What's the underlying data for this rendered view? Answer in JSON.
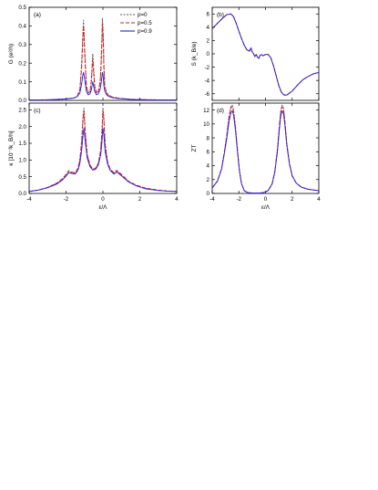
{
  "colors": {
    "p0": "#555555",
    "p05": "#e8141b",
    "p09": "#2a1fd8",
    "axis": "#000000"
  },
  "chart_data": [
    {
      "id": "a",
      "type": "line",
      "panel_label": "(a)",
      "ylabel": "G (e²/h)",
      "xlabel": "",
      "xlim": [
        -4,
        4
      ],
      "ylim": [
        0,
        0.5
      ],
      "xticks": [
        -4,
        -2,
        0,
        2,
        4
      ],
      "yticks": [
        0.0,
        0.1,
        0.2,
        0.3,
        0.4,
        0.5
      ],
      "legend": {
        "placement": "top-right",
        "entries": [
          "p=0",
          "p=0.5",
          "p=0.9"
        ]
      },
      "series": [
        {
          "name": "p=0",
          "color_key": "p0",
          "dash": "2,1.5",
          "x": [
            -4,
            -3,
            -2.5,
            -2,
            -1.6,
            -1.4,
            -1.25,
            -1.15,
            -1.1,
            -1.05,
            -1,
            -0.9,
            -0.8,
            -0.7,
            -0.62,
            -0.58,
            -0.55,
            -0.52,
            -0.45,
            -0.35,
            -0.25,
            -0.15,
            -0.1,
            -0.05,
            -0.03,
            0,
            0.03,
            0.05,
            0.1,
            0.2,
            0.3,
            0.5,
            0.8,
            1.5,
            2.5,
            4
          ],
          "y": [
            0.002,
            0.003,
            0.005,
            0.008,
            0.012,
            0.02,
            0.06,
            0.2,
            0.33,
            0.43,
            0.3,
            0.08,
            0.04,
            0.05,
            0.12,
            0.2,
            0.25,
            0.2,
            0.08,
            0.04,
            0.05,
            0.1,
            0.2,
            0.35,
            0.44,
            0.4,
            0.3,
            0.2,
            0.08,
            0.04,
            0.028,
            0.018,
            0.012,
            0.006,
            0.003,
            0.002
          ]
        },
        {
          "name": "p=0.5",
          "color_key": "p05",
          "dash": "4,2",
          "x": [
            -4,
            -3,
            -2.5,
            -2,
            -1.6,
            -1.4,
            -1.25,
            -1.15,
            -1.1,
            -1.05,
            -1,
            -0.9,
            -0.8,
            -0.7,
            -0.62,
            -0.58,
            -0.55,
            -0.52,
            -0.45,
            -0.35,
            -0.25,
            -0.15,
            -0.1,
            -0.05,
            -0.03,
            0,
            0.03,
            0.05,
            0.1,
            0.2,
            0.3,
            0.5,
            0.8,
            1.5,
            2.5,
            4
          ],
          "y": [
            0.002,
            0.003,
            0.005,
            0.008,
            0.012,
            0.02,
            0.055,
            0.18,
            0.3,
            0.4,
            0.28,
            0.075,
            0.04,
            0.048,
            0.11,
            0.18,
            0.22,
            0.18,
            0.075,
            0.04,
            0.048,
            0.095,
            0.18,
            0.32,
            0.41,
            0.37,
            0.28,
            0.18,
            0.075,
            0.04,
            0.027,
            0.018,
            0.012,
            0.006,
            0.003,
            0.002
          ]
        },
        {
          "name": "p=0.9",
          "color_key": "p09",
          "dash": "",
          "x": [
            -4,
            -3,
            -2.5,
            -2,
            -1.6,
            -1.4,
            -1.25,
            -1.15,
            -1.1,
            -1.05,
            -1,
            -0.9,
            -0.8,
            -0.7,
            -0.62,
            -0.58,
            -0.55,
            -0.52,
            -0.45,
            -0.35,
            -0.25,
            -0.15,
            -0.1,
            -0.05,
            -0.03,
            0,
            0.03,
            0.05,
            0.1,
            0.2,
            0.3,
            0.5,
            0.8,
            1.5,
            2.5,
            4
          ],
          "y": [
            0.002,
            0.003,
            0.005,
            0.008,
            0.012,
            0.02,
            0.04,
            0.09,
            0.13,
            0.15,
            0.12,
            0.05,
            0.03,
            0.035,
            0.06,
            0.085,
            0.1,
            0.085,
            0.05,
            0.03,
            0.035,
            0.06,
            0.09,
            0.13,
            0.15,
            0.14,
            0.11,
            0.08,
            0.05,
            0.03,
            0.022,
            0.015,
            0.01,
            0.005,
            0.003,
            0.002
          ]
        }
      ]
    },
    {
      "id": "b",
      "type": "line",
      "panel_label": "(b)",
      "ylabel": "S (k_B/e)",
      "xlabel": "",
      "xlim": [
        -4,
        4
      ],
      "ylim": [
        -7,
        7
      ],
      "xticks": [
        -4,
        -2,
        0,
        2,
        4
      ],
      "yticks": [
        -6,
        -4,
        -2,
        0,
        2,
        4,
        6
      ],
      "series": [
        {
          "name": "p=0",
          "color_key": "p0",
          "dash": "2,1.5",
          "x": [
            -4,
            -3.6,
            -3.2,
            -2.9,
            -2.6,
            -2.4,
            -2.2,
            -2.0,
            -1.8,
            -1.6,
            -1.4,
            -1.2,
            -1.1,
            -1.0,
            -0.9,
            -0.8,
            -0.7,
            -0.6,
            -0.5,
            -0.4,
            -0.3,
            -0.2,
            -0.1,
            0,
            0.2,
            0.4,
            0.6,
            0.8,
            1.0,
            1.2,
            1.4,
            1.6,
            2.0,
            2.4,
            2.8,
            3.2,
            3.6,
            4
          ],
          "y": [
            3.8,
            4.6,
            5.4,
            5.9,
            6.0,
            5.6,
            4.6,
            3.4,
            2.3,
            1.3,
            0.6,
            0.4,
            0.9,
            0.3,
            0.0,
            -0.4,
            -0.1,
            -0.5,
            -0.7,
            -0.2,
            -0.1,
            -0.3,
            -0.2,
            -0.1,
            -0.1,
            -0.6,
            -1.8,
            -3.3,
            -4.8,
            -5.8,
            -6.2,
            -6.2,
            -5.6,
            -4.7,
            -3.9,
            -3.4,
            -3.0,
            -2.8
          ]
        },
        {
          "name": "p=0.5",
          "color_key": "p05",
          "dash": "4,2",
          "x": [
            -4,
            -3.6,
            -3.2,
            -2.9,
            -2.6,
            -2.4,
            -2.2,
            -2.0,
            -1.8,
            -1.6,
            -1.4,
            -1.2,
            -1.1,
            -1.0,
            -0.9,
            -0.8,
            -0.7,
            -0.6,
            -0.5,
            -0.4,
            -0.3,
            -0.2,
            -0.1,
            0,
            0.2,
            0.4,
            0.6,
            0.8,
            1.0,
            1.2,
            1.4,
            1.6,
            2.0,
            2.4,
            2.8,
            3.2,
            3.6,
            4
          ],
          "y": [
            3.8,
            4.6,
            5.4,
            5.9,
            6.0,
            5.6,
            4.6,
            3.4,
            2.3,
            1.3,
            0.6,
            0.4,
            0.9,
            0.3,
            0.0,
            -0.4,
            -0.1,
            -0.5,
            -0.7,
            -0.2,
            -0.1,
            -0.3,
            -0.2,
            -0.1,
            -0.1,
            -0.6,
            -1.8,
            -3.3,
            -4.8,
            -5.8,
            -6.2,
            -6.2,
            -5.6,
            -4.7,
            -3.9,
            -3.4,
            -3.0,
            -2.8
          ]
        },
        {
          "name": "p=0.9",
          "color_key": "p09",
          "dash": "",
          "x": [
            -4,
            -3.6,
            -3.2,
            -2.9,
            -2.6,
            -2.4,
            -2.2,
            -2.0,
            -1.8,
            -1.6,
            -1.4,
            -1.2,
            -1.1,
            -1.0,
            -0.9,
            -0.8,
            -0.7,
            -0.6,
            -0.5,
            -0.4,
            -0.3,
            -0.2,
            -0.1,
            0,
            0.2,
            0.4,
            0.6,
            0.8,
            1.0,
            1.2,
            1.4,
            1.6,
            2.0,
            2.4,
            2.8,
            3.2,
            3.6,
            4
          ],
          "y": [
            3.8,
            4.6,
            5.4,
            5.9,
            6.0,
            5.6,
            4.6,
            3.4,
            2.3,
            1.3,
            0.6,
            0.4,
            0.9,
            0.3,
            0.0,
            -0.4,
            -0.1,
            -0.5,
            -0.7,
            -0.2,
            -0.1,
            -0.3,
            -0.2,
            -0.1,
            -0.1,
            -0.6,
            -1.8,
            -3.3,
            -4.8,
            -5.8,
            -6.2,
            -6.2,
            -5.6,
            -4.7,
            -3.9,
            -3.4,
            -3.0,
            -2.8
          ]
        }
      ]
    },
    {
      "id": "c",
      "type": "line",
      "panel_label": "(c)",
      "ylabel": "κ [10⁻²k_B/h]",
      "xlabel": "ε/Λ",
      "xlim": [
        -4,
        4
      ],
      "ylim": [
        0,
        2.7
      ],
      "xticks": [
        -4,
        -2,
        0,
        2,
        4
      ],
      "yticks": [
        0.0,
        0.5,
        1.0,
        1.5,
        2.0,
        2.5
      ],
      "series": [
        {
          "name": "p=0",
          "color_key": "p0",
          "dash": "2,1.5",
          "x": [
            -4,
            -3.5,
            -3,
            -2.5,
            -2.2,
            -2.0,
            -1.85,
            -1.7,
            -1.5,
            -1.35,
            -1.25,
            -1.15,
            -1.08,
            -1.03,
            -0.95,
            -0.85,
            -0.7,
            -0.55,
            -0.4,
            -0.25,
            -0.12,
            -0.05,
            0,
            0.05,
            0.12,
            0.25,
            0.4,
            0.6,
            0.75,
            0.9,
            1.1,
            1.4,
            1.8,
            2.3,
            3,
            3.5,
            4
          ],
          "y": [
            0.06,
            0.1,
            0.18,
            0.3,
            0.42,
            0.55,
            0.66,
            0.62,
            0.6,
            0.75,
            1.0,
            1.6,
            2.3,
            2.55,
            1.8,
            1.15,
            0.85,
            0.72,
            0.75,
            0.9,
            1.3,
            1.9,
            2.55,
            2.3,
            1.5,
            0.95,
            0.7,
            0.6,
            0.67,
            0.6,
            0.5,
            0.35,
            0.24,
            0.15,
            0.09,
            0.07,
            0.06
          ]
        },
        {
          "name": "p=0.5",
          "color_key": "p05",
          "dash": "4,2",
          "x": [
            -4,
            -3.5,
            -3,
            -2.5,
            -2.2,
            -2.0,
            -1.85,
            -1.7,
            -1.5,
            -1.35,
            -1.25,
            -1.15,
            -1.08,
            -1.03,
            -0.95,
            -0.85,
            -0.7,
            -0.55,
            -0.4,
            -0.25,
            -0.12,
            -0.05,
            0,
            0.05,
            0.12,
            0.25,
            0.4,
            0.6,
            0.75,
            0.9,
            1.1,
            1.4,
            1.8,
            2.3,
            3,
            3.5,
            4
          ],
          "y": [
            0.06,
            0.1,
            0.18,
            0.31,
            0.44,
            0.57,
            0.68,
            0.64,
            0.62,
            0.76,
            1.0,
            1.55,
            2.2,
            2.45,
            1.75,
            1.15,
            0.85,
            0.72,
            0.75,
            0.9,
            1.28,
            1.85,
            2.45,
            2.2,
            1.45,
            0.95,
            0.72,
            0.62,
            0.69,
            0.62,
            0.52,
            0.36,
            0.25,
            0.16,
            0.1,
            0.07,
            0.06
          ]
        },
        {
          "name": "p=0.9",
          "color_key": "p09",
          "dash": "",
          "x": [
            -4,
            -3.5,
            -3,
            -2.5,
            -2.2,
            -2.0,
            -1.85,
            -1.7,
            -1.5,
            -1.35,
            -1.25,
            -1.15,
            -1.08,
            -1.03,
            -0.95,
            -0.85,
            -0.7,
            -0.55,
            -0.4,
            -0.25,
            -0.12,
            -0.05,
            0,
            0.05,
            0.12,
            0.25,
            0.4,
            0.6,
            0.75,
            0.9,
            1.1,
            1.4,
            1.8,
            2.3,
            3,
            3.5,
            4
          ],
          "y": [
            0.06,
            0.1,
            0.17,
            0.28,
            0.4,
            0.52,
            0.62,
            0.6,
            0.58,
            0.7,
            0.9,
            1.3,
            1.75,
            1.95,
            1.5,
            1.05,
            0.8,
            0.7,
            0.72,
            0.85,
            1.15,
            1.55,
            1.95,
            1.75,
            1.25,
            0.88,
            0.68,
            0.58,
            0.64,
            0.58,
            0.48,
            0.34,
            0.23,
            0.14,
            0.09,
            0.07,
            0.06
          ]
        }
      ]
    },
    {
      "id": "d",
      "type": "line",
      "panel_label": "(d)",
      "ylabel": "ZT",
      "xlabel": "ε/Λ",
      "xlim": [
        -4,
        4
      ],
      "ylim": [
        0,
        13
      ],
      "xticks": [
        -4,
        -2,
        0,
        2,
        4
      ],
      "yticks": [
        0,
        2,
        4,
        6,
        8,
        10,
        12
      ],
      "series": [
        {
          "name": "p=0",
          "color_key": "p0",
          "dash": "2,1.5",
          "x": [
            -4,
            -3.6,
            -3.3,
            -3.1,
            -2.9,
            -2.75,
            -2.6,
            -2.5,
            -2.4,
            -2.25,
            -2.1,
            -1.95,
            -1.8,
            -1.6,
            -1.3,
            -0.9,
            -0.5,
            -0.2,
            0.2,
            0.5,
            0.7,
            0.9,
            1.05,
            1.15,
            1.25,
            1.35,
            1.45,
            1.6,
            1.8,
            2.0,
            2.3,
            2.7,
            3.2,
            3.6,
            4
          ],
          "y": [
            0.8,
            1.8,
            3.6,
            5.8,
            8.5,
            11,
            12.5,
            12.7,
            12,
            9.5,
            6.2,
            3.2,
            1.4,
            0.4,
            0.1,
            0.05,
            0.05,
            0.1,
            0.4,
            1.4,
            3.2,
            6.5,
            10,
            12,
            12.7,
            12.3,
            10.5,
            7.2,
            4.3,
            2.6,
            1.5,
            0.9,
            0.6,
            0.5,
            0.4
          ]
        },
        {
          "name": "p=0.5",
          "color_key": "p05",
          "dash": "4,2",
          "x": [
            -4,
            -3.6,
            -3.3,
            -3.1,
            -2.9,
            -2.75,
            -2.6,
            -2.5,
            -2.4,
            -2.25,
            -2.1,
            -1.95,
            -1.8,
            -1.6,
            -1.3,
            -0.9,
            -0.5,
            -0.2,
            0.2,
            0.5,
            0.7,
            0.9,
            1.05,
            1.15,
            1.25,
            1.35,
            1.45,
            1.6,
            1.8,
            2.0,
            2.3,
            2.7,
            3.2,
            3.6,
            4
          ],
          "y": [
            0.8,
            1.8,
            3.6,
            5.8,
            8.4,
            10.8,
            12.3,
            12.5,
            11.8,
            9.4,
            6.1,
            3.2,
            1.4,
            0.4,
            0.1,
            0.05,
            0.05,
            0.1,
            0.4,
            1.4,
            3.2,
            6.4,
            9.9,
            11.8,
            12.5,
            12.1,
            10.4,
            7.1,
            4.3,
            2.6,
            1.5,
            0.9,
            0.6,
            0.5,
            0.4
          ]
        },
        {
          "name": "p=0.9",
          "color_key": "p09",
          "dash": "",
          "x": [
            -4,
            -3.6,
            -3.3,
            -3.1,
            -2.9,
            -2.75,
            -2.6,
            -2.5,
            -2.4,
            -2.25,
            -2.1,
            -1.95,
            -1.8,
            -1.6,
            -1.3,
            -0.9,
            -0.5,
            -0.2,
            0.2,
            0.5,
            0.7,
            0.9,
            1.05,
            1.15,
            1.25,
            1.35,
            1.45,
            1.6,
            1.8,
            2.0,
            2.3,
            2.7,
            3.2,
            3.6,
            4
          ],
          "y": [
            0.8,
            1.8,
            3.5,
            5.6,
            8.0,
            10.2,
            11.6,
            11.9,
            11.3,
            9.0,
            5.9,
            3.1,
            1.4,
            0.4,
            0.1,
            0.05,
            0.05,
            0.1,
            0.4,
            1.4,
            3.1,
            6.1,
            9.4,
            11.2,
            11.9,
            11.5,
            9.9,
            6.9,
            4.2,
            2.5,
            1.5,
            0.9,
            0.6,
            0.5,
            0.4
          ]
        }
      ]
    }
  ]
}
